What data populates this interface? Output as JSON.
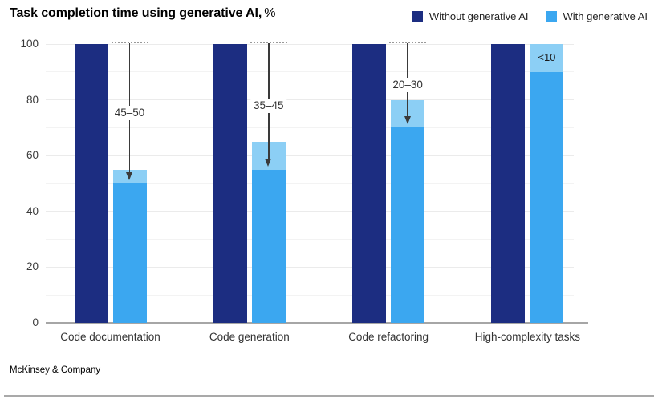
{
  "chart_data": {
    "type": "bar",
    "title": "Task completion time using generative AI,",
    "title_suffix": "%",
    "categories": [
      "Code documentation",
      "Code generation",
      "Code refactoring",
      "High-complexity tasks"
    ],
    "series": [
      {
        "name": "Without generative AI",
        "color": "#1c2d81",
        "values": [
          100,
          100,
          100,
          100
        ]
      },
      {
        "name": "With generative AI",
        "color": "#3ba7f0",
        "range_color": "#8ccff5",
        "low": [
          50,
          55,
          70,
          90
        ],
        "high": [
          55,
          65,
          80,
          100
        ]
      }
    ],
    "annotations": [
      {
        "category": "Code documentation",
        "label": "45–50",
        "style": "arrow"
      },
      {
        "category": "Code generation",
        "label": "35–45",
        "style": "arrow"
      },
      {
        "category": "Code refactoring",
        "label": "20–30",
        "style": "arrow"
      },
      {
        "category": "High-complexity tasks",
        "label": "<10",
        "style": "inline"
      }
    ],
    "ylim": [
      0,
      100
    ],
    "yticks": [
      0,
      20,
      40,
      60,
      80,
      100
    ],
    "grid_step": 10,
    "grid": "on",
    "legend_position": "top-right"
  },
  "footer": {
    "brand": "McKinsey & Company"
  }
}
